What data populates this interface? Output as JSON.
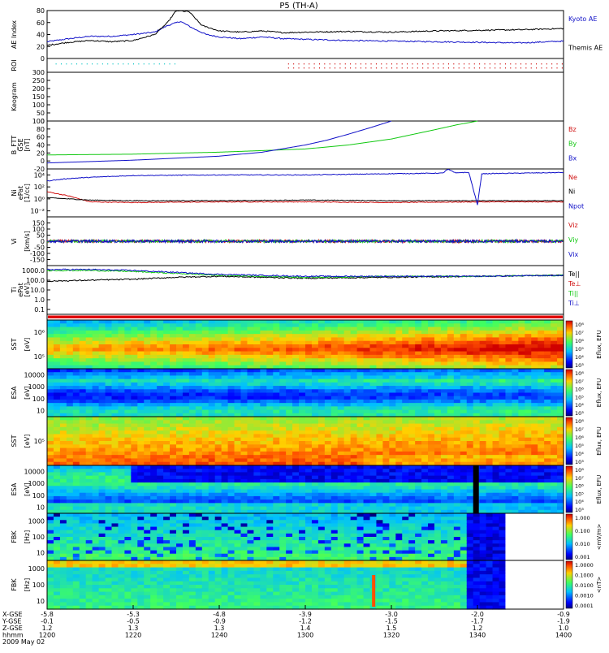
{
  "title": "P5 (TH-A)",
  "date_label": "2009 May 02",
  "colors": {
    "black": "#000000",
    "blue": "#1010c8",
    "red": "#d01010",
    "green": "#10c810"
  },
  "xaxis": {
    "rows": [
      {
        "label": "X-GSE",
        "values": [
          "-5.8",
          "-5.3",
          "-4.8",
          "-3.9",
          "-3.0",
          "-2.0",
          "-0.9"
        ]
      },
      {
        "label": "Y-GSE",
        "values": [
          "-0.1",
          "-0.5",
          "-0.9",
          "-1.2",
          "-1.5",
          "-1.7",
          "-1.9"
        ]
      },
      {
        "label": "Z-GSE",
        "values": [
          "1.2",
          "1.3",
          "1.3",
          "1.4",
          "1.5",
          "1.2",
          "1.0"
        ]
      },
      {
        "label": "hhmm",
        "values": [
          "1200",
          "1220",
          "1240",
          "1300",
          "1320",
          "1340",
          "1400"
        ]
      }
    ],
    "minutes": [
      0,
      20,
      40,
      60,
      80,
      100,
      120
    ]
  },
  "chart_data": [
    {
      "type": "line",
      "id": "ae",
      "ylabel": "AE Index",
      "ylim": [
        0,
        80
      ],
      "yticks": [
        "0",
        "20",
        "40",
        "60",
        "80"
      ],
      "legend": [
        "Kyoto AE",
        "Themis AE"
      ],
      "series": [
        {
          "name": "Kyoto AE",
          "color": "#1010c8",
          "x": [
            0,
            5,
            10,
            15,
            20,
            25,
            28,
            31,
            34,
            37,
            40,
            45,
            50,
            55,
            60,
            70,
            80,
            90,
            100,
            110,
            120
          ],
          "y": [
            28,
            33,
            37,
            37,
            40,
            44,
            55,
            62,
            50,
            40,
            36,
            33,
            36,
            33,
            32,
            30,
            29,
            28,
            27,
            26,
            29
          ]
        },
        {
          "name": "Themis AE",
          "color": "#000000",
          "x": [
            0,
            5,
            10,
            15,
            20,
            25,
            28,
            30,
            33,
            36,
            40,
            45,
            50,
            55,
            60,
            70,
            80,
            90,
            100,
            110,
            120
          ],
          "y": [
            22,
            27,
            30,
            28,
            30,
            40,
            60,
            80,
            78,
            55,
            46,
            44,
            46,
            43,
            44,
            45,
            44,
            46,
            47,
            48,
            50
          ]
        }
      ]
    },
    {
      "type": "scatter",
      "id": "roi",
      "ylabel": "ROI",
      "series": [
        {
          "name": "",
          "color": "#10c8c8",
          "x_range": [
            2,
            30
          ]
        },
        {
          "name": "",
          "color": "#d01010",
          "x_range": [
            56,
            120
          ]
        }
      ]
    },
    {
      "type": "line",
      "id": "keogram",
      "ylabel": "Keogram",
      "ylim": [
        0,
        300
      ],
      "yticks": [
        "0",
        "50",
        "100",
        "150",
        "200",
        "250",
        "300"
      ]
    },
    {
      "type": "line",
      "id": "bfield",
      "ylabel": [
        "B_FTT",
        "GSE",
        "[nT]"
      ],
      "ylim": [
        -20,
        100
      ],
      "yticks": [
        "-20",
        "0",
        "20",
        "40",
        "60",
        "80",
        "100"
      ],
      "legend": [
        "Bz",
        "By",
        "Bx"
      ],
      "series": [
        {
          "name": "Bz",
          "color": "#d01010",
          "x": [
            0,
            120
          ],
          "y": [
            -20,
            -20
          ]
        },
        {
          "name": "By",
          "color": "#10c810",
          "x": [
            0,
            20,
            40,
            60,
            70,
            80,
            90,
            95,
            100
          ],
          "y": [
            15,
            17,
            22,
            30,
            40,
            55,
            78,
            90,
            100
          ]
        },
        {
          "name": "Bx",
          "color": "#1010c8",
          "x": [
            0,
            20,
            40,
            50,
            60,
            65,
            70,
            75,
            80
          ],
          "y": [
            -5,
            2,
            12,
            22,
            40,
            52,
            67,
            83,
            100
          ]
        }
      ]
    },
    {
      "type": "line",
      "id": "density",
      "ylabel": [
        "Ni",
        "ePat",
        "[1/cc]"
      ],
      "log": true,
      "ylim_exp": [
        -3,
        5
      ],
      "yticks": [
        "10⁻²",
        "10⁰",
        "10²",
        "10⁴"
      ],
      "ytick_exp": [
        -2,
        0,
        2,
        4
      ],
      "legend": [
        "Ne",
        "Ni",
        "Npot"
      ],
      "series": [
        {
          "name": "Ne",
          "color": "#d01010",
          "x": [
            0,
            5,
            10,
            20,
            40,
            60,
            80,
            100,
            120
          ],
          "y_exp": [
            1.2,
            0.5,
            -0.5,
            -0.6,
            -0.5,
            -0.5,
            -0.6,
            -0.5,
            -0.5
          ]
        },
        {
          "name": "Ni",
          "color": "#000000",
          "x": [
            0,
            10,
            20,
            40,
            60,
            80,
            100,
            120
          ],
          "y_exp": [
            0.2,
            -0.2,
            -0.3,
            -0.3,
            -0.2,
            -0.3,
            -0.3,
            -0.3
          ]
        },
        {
          "name": "Npot",
          "color": "#1010c8",
          "x": [
            0,
            5,
            10,
            20,
            40,
            60,
            80,
            92,
            93,
            95,
            96,
            98,
            100,
            101,
            110,
            120
          ],
          "y_exp": [
            3.0,
            3.4,
            3.6,
            3.9,
            4.0,
            4.0,
            4.2,
            4.3,
            5.0,
            4.3,
            4.4,
            4.4,
            -1.0,
            4.2,
            4.3,
            4.4
          ]
        }
      ]
    },
    {
      "type": "line",
      "id": "velocity",
      "ylabel": [
        "Vi",
        "",
        "[km/s]"
      ],
      "ylim": [
        -200,
        200
      ],
      "yticks": [
        "-150",
        "-100",
        "-50",
        "0",
        "50",
        "100",
        "150"
      ],
      "legend": [
        "Viz",
        "Viy",
        "Vix"
      ],
      "series": [
        {
          "name": "Viz",
          "color": "#d01010",
          "mean": 0
        },
        {
          "name": "Viy",
          "color": "#10c810",
          "mean": 0
        },
        {
          "name": "Vix",
          "color": "#1010c8",
          "mean": 0
        }
      ]
    },
    {
      "type": "line",
      "id": "temperature",
      "ylabel": [
        "Ti",
        "ePat",
        "[eV]"
      ],
      "log": true,
      "ylim_exp": [
        -1.5,
        3.5
      ],
      "yticks": [
        "0.1",
        "1.0",
        "10.0",
        "100.0",
        "1000.0"
      ],
      "ytick_exp": [
        -1,
        0,
        1,
        2,
        3
      ],
      "legend": [
        "Te||",
        "Te⊥",
        "Ti||",
        "Ti⊥"
      ],
      "series": [
        {
          "name": "Te||",
          "color": "#000000",
          "x": [
            0,
            10,
            20,
            30,
            40,
            60,
            80,
            100,
            120
          ],
          "y_exp": [
            1.9,
            2.0,
            2.1,
            2.3,
            2.4,
            2.2,
            2.3,
            2.4,
            2.5
          ]
        },
        {
          "name": "Ti||",
          "color": "#10c810",
          "x": [
            0,
            10,
            20,
            30,
            40,
            60,
            80,
            100,
            120
          ],
          "y_exp": [
            3.0,
            3.0,
            2.9,
            2.7,
            2.5,
            2.3,
            2.4,
            2.4,
            2.5
          ]
        },
        {
          "name": "Ti⊥",
          "color": "#1010c8",
          "x": [
            0,
            10,
            20,
            30,
            40,
            60,
            80,
            100,
            120
          ],
          "y_exp": [
            3.1,
            3.1,
            3.0,
            2.8,
            2.6,
            2.4,
            2.4,
            2.4,
            2.5
          ]
        }
      ]
    },
    {
      "type": "heatmap",
      "id": "bar",
      "ylabel": ""
    },
    {
      "type": "heatmap",
      "id": "sst_e",
      "ylabel": [
        "SST",
        "",
        "[eV]"
      ],
      "yticks": [
        "10⁶",
        "10⁵"
      ],
      "colorbar": {
        "label": "Eflux, EFU",
        "ticks": [
          "10⁸",
          "10⁷",
          "10⁶",
          "10⁵",
          "10⁴",
          "10³"
        ]
      }
    },
    {
      "type": "heatmap",
      "id": "esa_e",
      "ylabel": [
        "ESA",
        "",
        "[eV]"
      ],
      "yticks": [
        "10000",
        "1000",
        "100",
        "10"
      ],
      "colorbar": {
        "label": "Eflux, EFU",
        "ticks": [
          "10⁸",
          "10⁷",
          "10⁶",
          "10⁵",
          "10⁴",
          "10³"
        ]
      }
    },
    {
      "type": "heatmap",
      "id": "sst_i",
      "ylabel": [
        "SST",
        "",
        "[eV]"
      ],
      "yticks": [
        "10⁵"
      ],
      "colorbar": {
        "label": "Eflux, EFU",
        "ticks": [
          "10⁸",
          "10⁷",
          "10⁶",
          "10⁵",
          "10⁴",
          "10³"
        ]
      }
    },
    {
      "type": "heatmap",
      "id": "esa_i",
      "ylabel": [
        "ESA",
        "",
        "[eV]"
      ],
      "yticks": [
        "10000",
        "1000",
        "100",
        "10"
      ],
      "colorbar": {
        "label": "Eflux, EFU",
        "ticks": [
          "10⁸",
          "10⁷",
          "10⁶",
          "10⁵",
          "10⁴",
          "10³"
        ]
      }
    },
    {
      "type": "heatmap",
      "id": "fbk_e",
      "ylabel": [
        "FBK",
        "",
        "[Hz]"
      ],
      "yticks": [
        "1000",
        "100",
        "10"
      ],
      "colorbar": {
        "label": "<mV/m>",
        "ticks": [
          "1.000",
          "0.100",
          "0.010",
          "0.001"
        ]
      }
    },
    {
      "type": "heatmap",
      "id": "fbk_b",
      "ylabel": [
        "FBK",
        "",
        "[Hz]"
      ],
      "yticks": [
        "1000",
        "100",
        "10"
      ],
      "colorbar": {
        "label": "<nT>",
        "ticks": [
          "1.0000",
          "0.1000",
          "0.0100",
          "0.0010",
          "0.0001"
        ]
      }
    }
  ]
}
